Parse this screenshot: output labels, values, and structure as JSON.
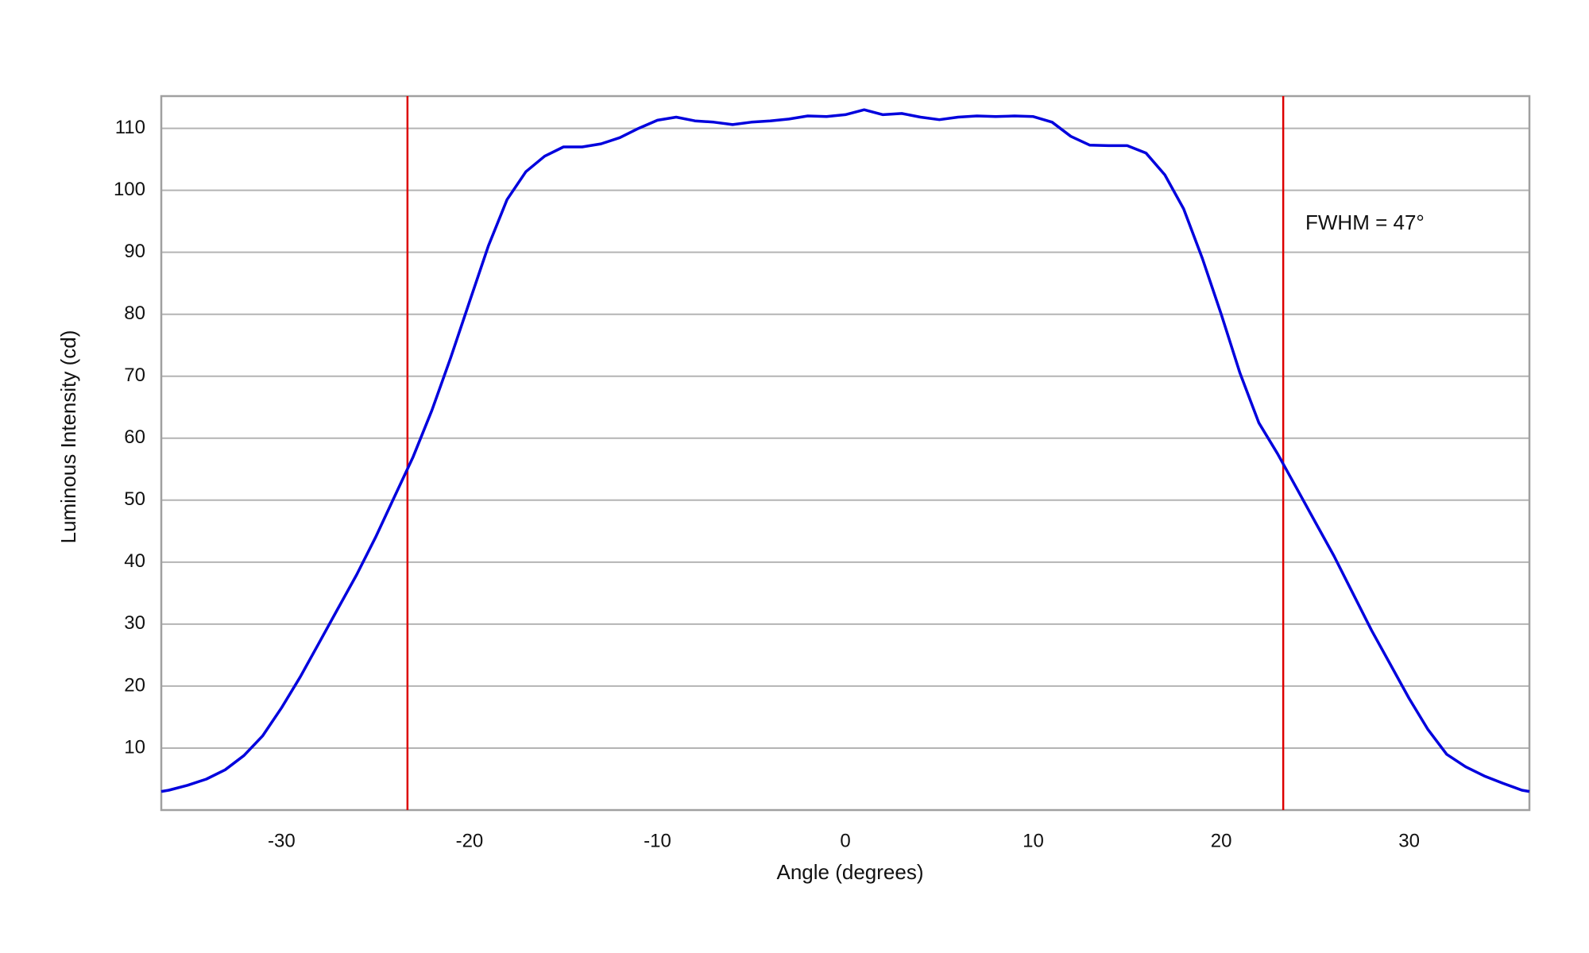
{
  "chart_data": {
    "type": "line",
    "x_label": "Angle (degrees)",
    "y_label": "Luminous Intensity (cd)",
    "x": [
      -36.4,
      -36,
      -35,
      -34,
      -33,
      -32,
      -31,
      -30,
      -29,
      -28,
      -27,
      -26,
      -25,
      -24,
      -23,
      -22,
      -21,
      -20,
      -19,
      -18,
      -17,
      -16,
      -15,
      -14,
      -13,
      -12,
      -11,
      -10,
      -9,
      -8,
      -7,
      -6,
      -5,
      -4,
      -3,
      -2,
      -1,
      0,
      1,
      2,
      3,
      4,
      5,
      6,
      7,
      8,
      9,
      10,
      11,
      12,
      13,
      14,
      15,
      16,
      17,
      18,
      19,
      20,
      21,
      22,
      23,
      24,
      25,
      26,
      27,
      28,
      29,
      30,
      31,
      32,
      33,
      34,
      35,
      36,
      36.4
    ],
    "series": [
      {
        "color": "#0000dd",
        "values": [
          3,
          3.2,
          4,
          5,
          6.5,
          8.8,
          12,
          16.5,
          21.5,
          27,
          32.5,
          38,
          44,
          50.5,
          57,
          64.5,
          73,
          82,
          91,
          98.5,
          103,
          105.5,
          107,
          107,
          107.5,
          108.5,
          110,
          111.3,
          111.8,
          111.2,
          111,
          110.6,
          111,
          111.2,
          111.5,
          112,
          111.9,
          112.2,
          113,
          112.2,
          112.4,
          111.8,
          111.4,
          111.8,
          112,
          111.9,
          112,
          111.9,
          111,
          108.7,
          107.3,
          107.2,
          107.2,
          106,
          102.5,
          97,
          89,
          80,
          70.5,
          62.5,
          57.5,
          52,
          46.5,
          41,
          35,
          29,
          23.5,
          18,
          13,
          9,
          7,
          5.5,
          4.3,
          3.2,
          3
        ]
      }
    ],
    "vlines": [
      -23.3,
      23.3
    ],
    "vline_color": "#dd0000",
    "annotation": "FWHM = 47°",
    "xlim": [
      -36.4,
      36.4
    ],
    "xticks": [
      -30,
      -20,
      -10,
      0,
      10,
      20,
      30
    ],
    "ylim": [
      0,
      115.2
    ],
    "yticks": [
      10,
      20,
      30,
      40,
      50,
      60,
      70,
      80,
      90,
      100,
      110
    ],
    "grid": true
  }
}
